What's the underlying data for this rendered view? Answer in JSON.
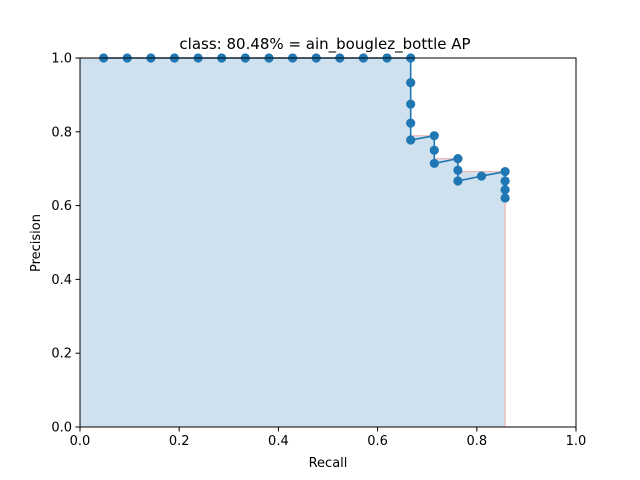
{
  "chart_data": {
    "type": "line",
    "title": "class: 80.48% = ain_bouglez_bottle AP",
    "xlabel": "Recall",
    "ylabel": "Precision",
    "xlim": [
      0.0,
      1.0
    ],
    "ylim": [
      0.0,
      1.0
    ],
    "xticks": [
      "0.0",
      "0.2",
      "0.4",
      "0.6",
      "0.8",
      "1.0"
    ],
    "yticks": [
      "0.0",
      "0.2",
      "0.4",
      "0.6",
      "0.8",
      "1.0"
    ],
    "grid": false,
    "colors": {
      "line": "#1f77b4",
      "fill": "#cfe0ee",
      "envelope": "#f4b8b4"
    },
    "series": [
      {
        "x": [
          0.0476,
          0.0952,
          0.1429,
          0.1905,
          0.2381,
          0.2857,
          0.3333,
          0.381,
          0.4286,
          0.4762,
          0.5238,
          0.5714,
          0.619,
          0.6667,
          0.6667,
          0.6667,
          0.6667,
          0.6667,
          0.7143,
          0.7143,
          0.7143,
          0.7619,
          0.7619,
          0.7619,
          0.8095,
          0.8571,
          0.8571,
          0.8571,
          0.8571
        ],
        "y": [
          1.0,
          1.0,
          1.0,
          1.0,
          1.0,
          1.0,
          1.0,
          1.0,
          1.0,
          1.0,
          1.0,
          1.0,
          1.0,
          1.0,
          0.9333,
          0.875,
          0.8235,
          0.7778,
          0.7895,
          0.75,
          0.7143,
          0.7273,
          0.6957,
          0.6667,
          0.68,
          0.6923,
          0.6667,
          0.6429,
          0.6207
        ]
      }
    ],
    "interpolated_envelope": {
      "x": [
        0.0,
        0.6667,
        0.6667,
        0.7143,
        0.7143,
        0.7619,
        0.7619,
        0.8571,
        0.8571
      ],
      "y": [
        1.0,
        1.0,
        0.7895,
        0.7895,
        0.7273,
        0.7273,
        0.6923,
        0.6923,
        0.0
      ]
    }
  }
}
